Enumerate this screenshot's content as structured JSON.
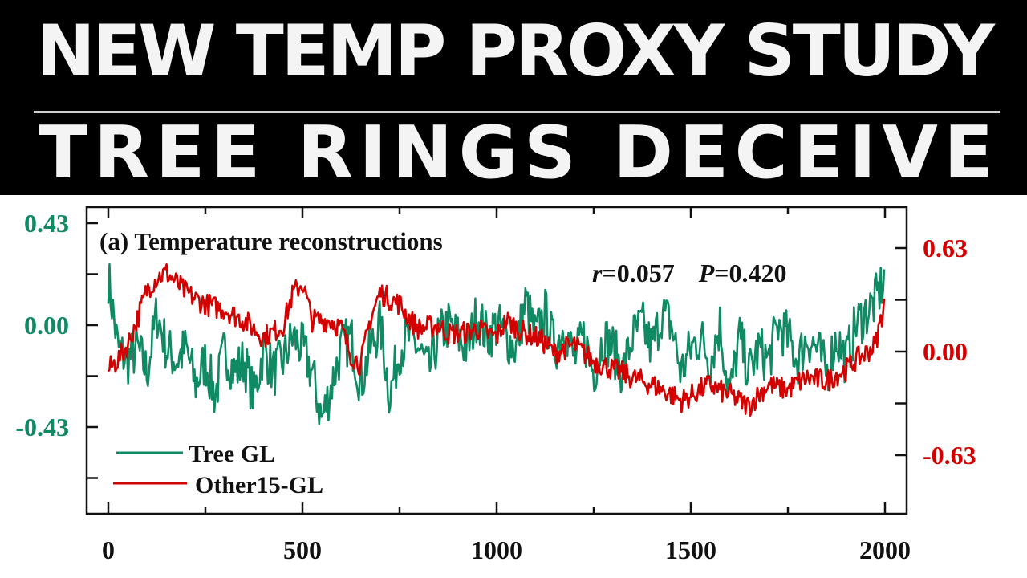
{
  "headline": {
    "line1": "NEW TEMP PROXY STUDY",
    "line2": "TREE RINGS DECEIVE"
  },
  "chart_data": {
    "type": "line",
    "title": "(a) Temperature reconstructions",
    "annotation": {
      "r_label": "r",
      "r_value": "=0.057",
      "p_label": "P",
      "p_value": "=0.420"
    },
    "xlabel": "",
    "xlim": [
      0,
      2000
    ],
    "x_ticks": [
      "0",
      "500",
      "1000",
      "1500",
      "2000"
    ],
    "y_left": {
      "ticks": [
        "0.43",
        "0.00",
        "-0.43"
      ],
      "tick_values": [
        0.43,
        0,
        -0.43
      ],
      "color": "#0f8a63"
    },
    "y_right": {
      "ticks": [
        "0.63",
        "0.00",
        "-0.63"
      ],
      "tick_values": [
        0.63,
        0,
        -0.63
      ],
      "color": "#d40000"
    },
    "legend_position": "bottom-left",
    "series": [
      {
        "name": "Tree GL",
        "axis": "left",
        "color": "#0f8a63",
        "x_step": 25,
        "values": [
          0.2,
          -0.1,
          -0.15,
          -0.1,
          -0.2,
          0.05,
          -0.1,
          -0.15,
          -0.1,
          -0.25,
          -0.15,
          -0.3,
          -0.1,
          -0.2,
          -0.15,
          -0.3,
          -0.1,
          -0.2,
          -0.15,
          -0.05,
          -0.1,
          -0.2,
          -0.4,
          -0.25,
          -0.1,
          -0.05,
          -0.25,
          -0.1,
          0.0,
          -0.3,
          -0.1,
          -0.05,
          -0.1,
          -0.2,
          -0.05,
          0.0,
          -0.05,
          -0.1,
          0.05,
          -0.05,
          0.0,
          -0.05,
          -0.1,
          0.1,
          -0.05,
          0.05,
          -0.1,
          0.0,
          -0.15,
          -0.05,
          -0.2,
          -0.05,
          -0.1,
          -0.2,
          -0.05,
          0.0,
          -0.1,
          0.05,
          0.0,
          -0.2,
          -0.1,
          -0.05,
          -0.15,
          0.0,
          -0.3,
          -0.05,
          -0.2,
          -0.1,
          -0.15,
          0.0,
          -0.05,
          -0.15,
          -0.05,
          -0.1,
          -0.2,
          -0.05,
          -0.15,
          0.0,
          0.05,
          0.1,
          0.2
        ]
      },
      {
        "name": "Other15-GL",
        "axis": "right",
        "color": "#d40000",
        "x_step": 25,
        "values": [
          -0.11,
          -0.05,
          0.04,
          0.2,
          0.38,
          0.45,
          0.48,
          0.42,
          0.36,
          0.32,
          0.29,
          0.27,
          0.26,
          0.22,
          0.19,
          0.14,
          0.09,
          0.12,
          0.16,
          0.35,
          0.42,
          0.19,
          0.19,
          0.19,
          0.14,
          -0.02,
          -0.08,
          0.2,
          0.36,
          0.32,
          0.29,
          0.2,
          0.14,
          0.15,
          0.16,
          0.11,
          0.11,
          0.12,
          0.14,
          0.11,
          0.09,
          0.19,
          0.15,
          0.11,
          0.09,
          0.05,
          -0.01,
          0.02,
          0.04,
          -0.01,
          -0.06,
          -0.08,
          -0.11,
          -0.13,
          -0.16,
          -0.18,
          -0.2,
          -0.23,
          -0.26,
          -0.3,
          -0.27,
          -0.23,
          -0.2,
          -0.24,
          -0.26,
          -0.3,
          -0.33,
          -0.26,
          -0.2,
          -0.22,
          -0.23,
          -0.19,
          -0.16,
          -0.17,
          -0.18,
          -0.14,
          -0.11,
          -0.05,
          -0.01,
          0.04,
          0.31
        ]
      }
    ]
  }
}
